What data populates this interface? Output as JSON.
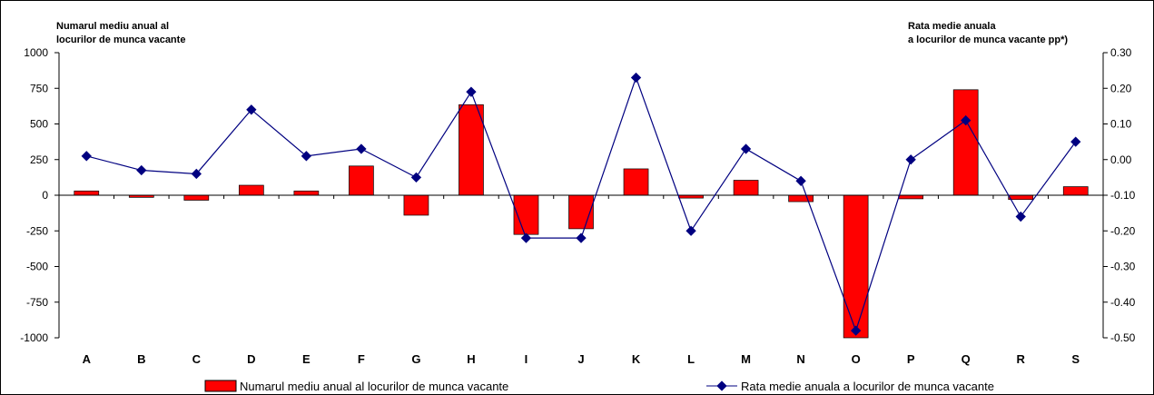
{
  "chart_data": {
    "type": "bar+line",
    "title": "",
    "left_axis": {
      "title_line1": "Numarul mediu anual al",
      "title_line2": "locurilor de munca vacante",
      "ylim": [
        -1000,
        1000
      ],
      "ticks": [
        "1000",
        "750",
        "500",
        "250",
        "0",
        "-250",
        "-500",
        "-750",
        "-1000"
      ]
    },
    "right_axis": {
      "title_line1": "Rata medie anuala",
      "title_line2": "a locurilor de munca vacante pp*)",
      "ylim": [
        -0.5,
        0.3
      ],
      "ticks": [
        "0.30",
        "0.20",
        "0.10",
        "0.00",
        "-0.10",
        "-0.20",
        "-0.30",
        "-0.40",
        "-0.50"
      ]
    },
    "categories": [
      "A",
      "B",
      "C",
      "D",
      "E",
      "F",
      "G",
      "H",
      "I",
      "J",
      "K",
      "L",
      "M",
      "N",
      "O",
      "P",
      "Q",
      "R",
      "S"
    ],
    "series": [
      {
        "name": "Numarul mediu anual al locurilor de munca vacante",
        "kind": "bar",
        "axis": "left",
        "color": "#ff0000",
        "values": [
          30,
          -15,
          -35,
          70,
          30,
          205,
          -140,
          635,
          -275,
          -235,
          185,
          -20,
          105,
          -45,
          -1000,
          -25,
          740,
          -30,
          60
        ]
      },
      {
        "name": "Rata medie anuala a locurilor de munca vacante",
        "kind": "line",
        "axis": "right",
        "color": "#000080",
        "values": [
          0.01,
          -0.03,
          -0.04,
          0.14,
          0.01,
          0.03,
          -0.05,
          0.19,
          -0.22,
          -0.22,
          0.23,
          -0.2,
          0.03,
          -0.06,
          -0.48,
          0.0,
          0.11,
          -0.16,
          0.05
        ]
      }
    ],
    "legend": {
      "placement": "bottom"
    },
    "grid": false
  }
}
